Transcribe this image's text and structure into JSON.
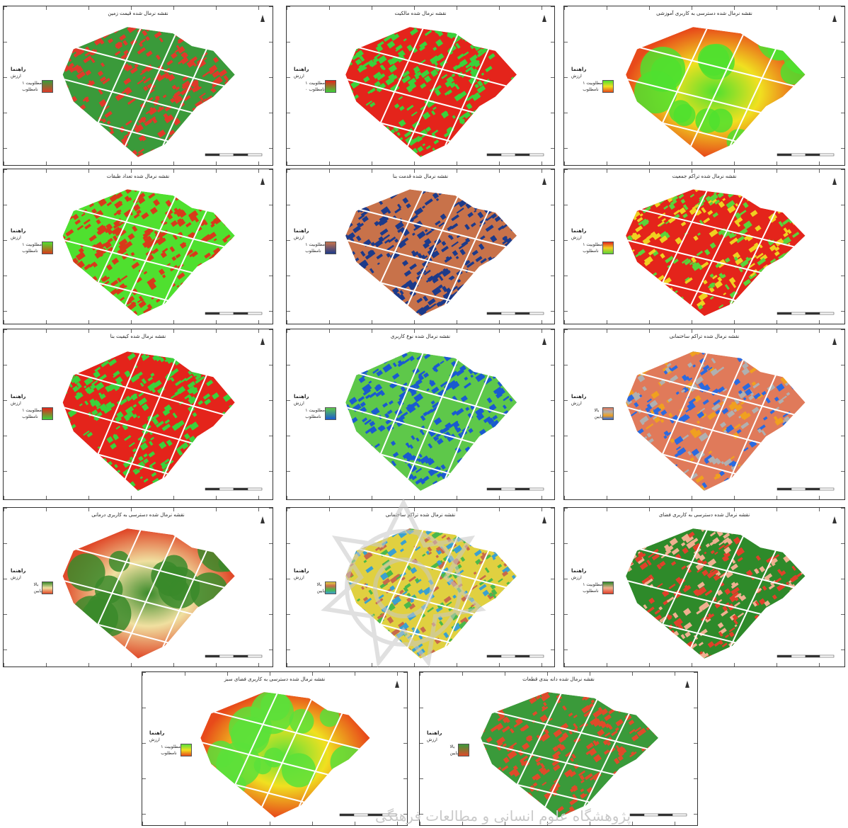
{
  "panels": [
    {
      "id": "p1",
      "title": "نقشه نرمال شده قیمت زمین",
      "legend": {
        "title": "راهنما",
        "sub": "ارزش",
        "high": "مطلوبیت ۱",
        "low": "نامطلوب"
      },
      "colors": [
        "#3a9a3a",
        "#e03a2a"
      ],
      "style": "mix"
    },
    {
      "id": "p2",
      "title": "نقشه نرمال شده مالکیت",
      "legend": {
        "title": "راهنما",
        "sub": "ارزش",
        "high": "مطلوبیت ۱",
        "low": "نامطلوب ۰"
      },
      "colors": [
        "#e4241b",
        "#3bd13b"
      ],
      "style": "mix"
    },
    {
      "id": "p3",
      "title": "نقشه نرمال شده دسترسی به کاربری آموزشی",
      "legend": {
        "title": "راهنما",
        "sub": "ارزش",
        "high": "مطلوبیت ۱",
        "low": "نامطلوب"
      },
      "colors": [
        "#4fe02f",
        "#f0e020",
        "#e84a1a"
      ],
      "style": "gradient"
    },
    {
      "id": "p4",
      "title": "نقشه نرمال شده تعداد طبقات",
      "legend": {
        "title": "راهنما",
        "sub": "ارزش",
        "high": "مطلوبیت ۱",
        "low": "نامطلوب"
      },
      "colors": [
        "#4fe02f",
        "#d83a1a"
      ],
      "style": "mix"
    },
    {
      "id": "p5",
      "title": "نقشه نرمال شده قدمت بنا",
      "legend": {
        "title": "راهنما",
        "sub": "ارزش",
        "high": "مطلوبیت ۱",
        "low": "نامطلوب"
      },
      "colors": [
        "#c8724a",
        "#1c3a8a"
      ],
      "style": "mix"
    },
    {
      "id": "p6",
      "title": "نقشه نرمال شده تراکم جمعیت",
      "legend": {
        "title": "راهنما",
        "sub": "ارزش",
        "high": "مطلوبیت ۱",
        "low": "نامطلوب"
      },
      "colors": [
        "#e4241b",
        "#f0d020",
        "#5ad43a"
      ],
      "style": "mix"
    },
    {
      "id": "p7",
      "title": "نقشه نرمال شده کیفیت بنا",
      "legend": {
        "title": "راهنما",
        "sub": "ارزش",
        "high": "مطلوبیت ۱",
        "low": "نامطلوب"
      },
      "colors": [
        "#e4241b",
        "#3bd13b"
      ],
      "style": "mix"
    },
    {
      "id": "p8",
      "title": "نقشه نرمال شده نوع کاربری",
      "legend": {
        "title": "راهنما",
        "sub": "ارزش",
        "high": "مطلوبیت ۱",
        "low": "نامطلوب"
      },
      "colors": [
        "#5ec84a",
        "#1a5ad0"
      ],
      "style": "mix"
    },
    {
      "id": "p9",
      "title": "نقشه نرمال شده تراکم ساختمانی",
      "legend": {
        "title": "راهنما",
        "sub": "ارزش",
        "high": "بالا",
        "low": "پایین"
      },
      "colors": [
        "#e07a5a",
        "#b0b0b0",
        "#f0a020",
        "#2a6ae0"
      ],
      "style": "mix"
    },
    {
      "id": "p10",
      "title": "نقشه نرمال شده دسترسی به کاربری درمانی",
      "legend": {
        "title": "راهنما",
        "sub": "ارزش",
        "high": "بالا",
        "low": "پایین"
      },
      "colors": [
        "#3a8a2a",
        "#f0e0a0",
        "#e04a2a"
      ],
      "style": "gradient"
    },
    {
      "id": "p11",
      "title": "نقشه نرمال شده تراکم ساختمانی",
      "legend": {
        "title": "راهنما",
        "sub": "ارزش",
        "high": "بالا",
        "low": "پایین"
      },
      "colors": [
        "#e0d040",
        "#c86a4a",
        "#4ab84a",
        "#3aa0d0"
      ],
      "style": "mix"
    },
    {
      "id": "p12",
      "title": "نقشه نرمال شده دسترسی به کاربری فضای",
      "legend": {
        "title": "راهنما",
        "sub": "ارزش",
        "high": "مطلوبیت ۱",
        "low": "نامطلوب"
      },
      "colors": [
        "#2e8a2a",
        "#f0b090",
        "#e0402a"
      ],
      "style": "mix"
    },
    {
      "id": "p13",
      "title": "نقشه نرمال شده دسترسی به کاربری فضای سبز",
      "legend": {
        "title": "راهنما",
        "sub": "ارزش",
        "high": "مطلوبیت ۱",
        "low": "نامطلوب"
      },
      "colors": [
        "#5ae03a",
        "#f0e020",
        "#e84a1a"
      ],
      "style": "gradient"
    },
    {
      "id": "p14",
      "title": "نقشه نرمال شده دانه بندی قطعات",
      "legend": {
        "title": "راهنما",
        "sub": "ارزش",
        "high": "بالا",
        "low": "پایین"
      },
      "colors": [
        "#3a9a3a",
        "#e04a2a"
      ],
      "style": "mix"
    }
  ],
  "watermark": {
    "text": "پژوهشگاه علوم انسانی و مطالعات فرهنگی"
  }
}
